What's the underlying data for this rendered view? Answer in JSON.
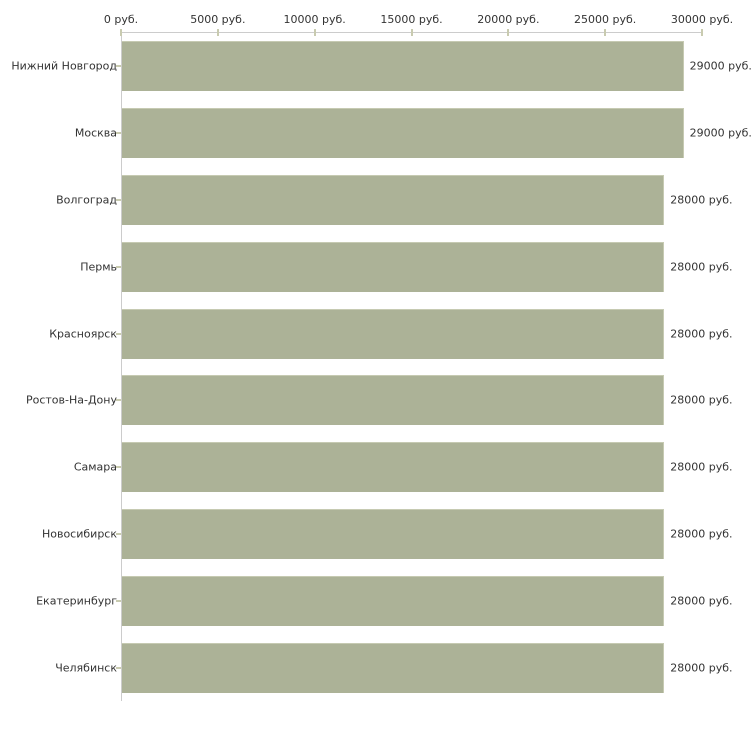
{
  "chart_data": {
    "type": "bar",
    "orientation": "horizontal",
    "title": "",
    "xlabel": "",
    "ylabel": "",
    "xlim": [
      0,
      30000
    ],
    "grid": false,
    "legend": false,
    "x_tick_labels": [
      "0 руб.",
      "5000 руб.",
      "10000 руб.",
      "15000 руб.",
      "20000 руб.",
      "25000 руб.",
      "30000 руб."
    ],
    "x_tick_values": [
      0,
      5000,
      10000,
      15000,
      20000,
      25000,
      30000
    ],
    "categories": [
      "Нижний Новгород",
      "Москва",
      "Волгоград",
      "Пермь",
      "Красноярск",
      "Ростов-На-Дону",
      "Самара",
      "Новосибирск",
      "Екатеринбург",
      "Челябинск"
    ],
    "values": [
      29000,
      29000,
      28000,
      28000,
      28000,
      28000,
      28000,
      28000,
      28000,
      28000
    ],
    "value_labels": [
      "29000 руб.",
      "29000 руб.",
      "28000 руб.",
      "28000 руб.",
      "28000 руб.",
      "28000 руб.",
      "28000 руб.",
      "28000 руб.",
      "28000 руб.",
      "28000 руб."
    ],
    "colors": {
      "bar": "#acb297",
      "bar_highlight": "#c6cab2",
      "axis": "#cccccc",
      "tick": "#c9cbb0",
      "text": "#333333",
      "background": "#ffffff"
    }
  }
}
